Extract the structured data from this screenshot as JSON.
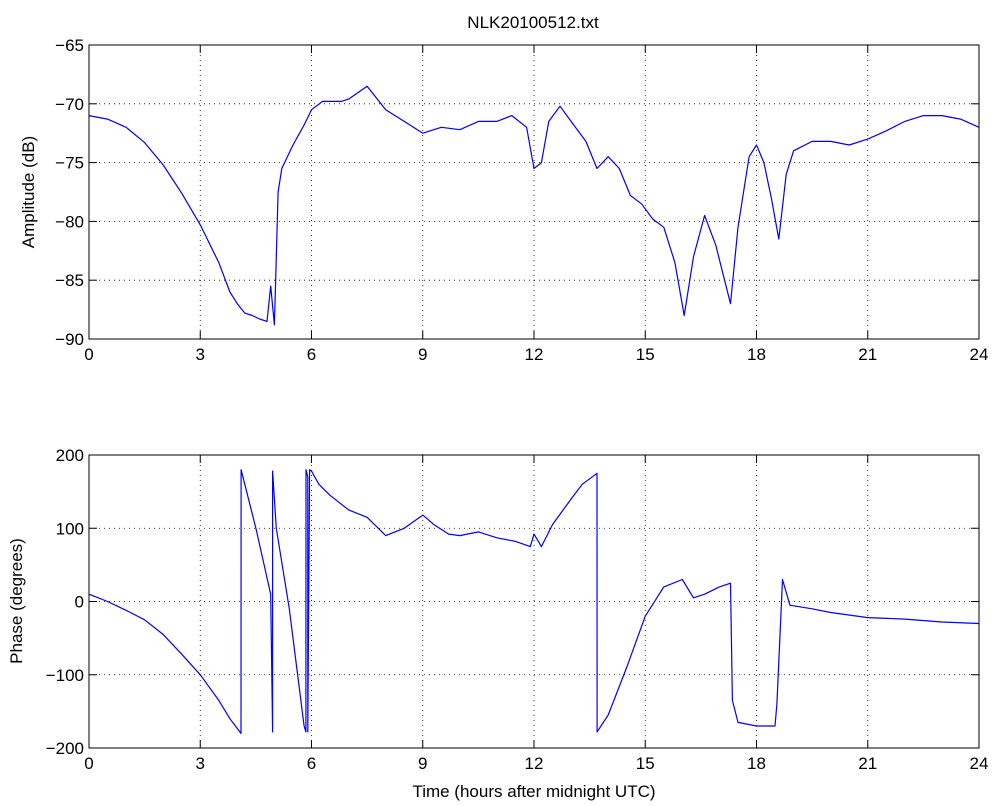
{
  "figure": {
    "title": "NLK20100512.txt"
  },
  "chart_data": [
    {
      "type": "line",
      "title": "NLK20100512.txt",
      "xlabel": "",
      "ylabel": "Amplitude (dB)",
      "xlim": [
        0,
        24
      ],
      "ylim": [
        -90,
        -65
      ],
      "xticks": [
        0,
        3,
        6,
        9,
        12,
        15,
        18,
        21,
        24
      ],
      "yticks": [
        -90,
        -85,
        -80,
        -75,
        -70,
        -65
      ],
      "grid": true,
      "line_color": "#0000ff",
      "x": [
        0,
        0.5,
        1.0,
        1.5,
        2.0,
        2.5,
        3.0,
        3.5,
        3.8,
        4.0,
        4.2,
        4.4,
        4.6,
        4.8,
        4.9,
        5.0,
        5.05,
        5.1,
        5.2,
        5.5,
        5.8,
        6.0,
        6.3,
        6.8,
        7.0,
        7.5,
        8.0,
        8.5,
        9.0,
        9.5,
        10.0,
        10.5,
        11.0,
        11.4,
        11.8,
        12.0,
        12.2,
        12.4,
        12.7,
        13.0,
        13.4,
        13.7,
        14.0,
        14.3,
        14.6,
        14.9,
        15.2,
        15.5,
        15.8,
        16.05,
        16.3,
        16.6,
        16.9,
        17.1,
        17.3,
        17.5,
        17.8,
        18.0,
        18.2,
        18.4,
        18.6,
        18.8,
        19.0,
        19.5,
        20.0,
        20.5,
        21.0,
        21.5,
        22.0,
        22.5,
        23.0,
        23.5,
        24.0
      ],
      "y": [
        -71,
        -71.3,
        -72,
        -73.3,
        -75.2,
        -77.6,
        -80.3,
        -83.5,
        -86.0,
        -87.0,
        -87.8,
        -88.0,
        -88.3,
        -88.5,
        -85.5,
        -88.8,
        -83,
        -77.5,
        -75.5,
        -73.5,
        -71.8,
        -70.5,
        -69.8,
        -69.8,
        -69.6,
        -68.5,
        -70.5,
        -71.5,
        -72.5,
        -72.0,
        -72.2,
        -71.5,
        -71.5,
        -71.0,
        -72.0,
        -75.5,
        -75.0,
        -71.5,
        -70.2,
        -71.5,
        -73.2,
        -75.5,
        -74.5,
        -75.5,
        -77.8,
        -78.5,
        -79.8,
        -80.5,
        -83.5,
        -88.0,
        -83.0,
        -79.5,
        -82.0,
        -84.5,
        -87.0,
        -80.5,
        -74.5,
        -73.5,
        -75.0,
        -78.0,
        -81.5,
        -76.0,
        -74.0,
        -73.2,
        -73.2,
        -73.5,
        -73.0,
        -72.3,
        -71.5,
        -71.0,
        -71.0,
        -71.3,
        -72.0
      ]
    },
    {
      "type": "line",
      "title": "",
      "xlabel": "Time (hours after midnight UTC)",
      "ylabel": "Phase (degrees)",
      "xlim": [
        0,
        24
      ],
      "ylim": [
        -200,
        200
      ],
      "xticks": [
        0,
        3,
        6,
        9,
        12,
        15,
        18,
        21,
        24
      ],
      "yticks": [
        -200,
        -100,
        0,
        100,
        200
      ],
      "grid": true,
      "line_color": "#0000ff",
      "x": [
        0,
        0.5,
        1.0,
        1.5,
        2.0,
        2.5,
        3.0,
        3.5,
        3.8,
        4.1,
        4.101,
        4.5,
        4.9,
        4.95,
        4.951,
        5.05,
        5.4,
        5.8,
        5.85,
        5.851,
        5.9,
        5.901,
        5.95,
        6.0,
        6.2,
        6.5,
        7.0,
        7.5,
        8.0,
        8.5,
        9.0,
        9.3,
        9.7,
        10.0,
        10.5,
        11.0,
        11.5,
        11.9,
        12.0,
        12.2,
        12.5,
        13.0,
        13.3,
        13.7,
        13.701,
        14.0,
        14.5,
        15.0,
        15.5,
        16.0,
        16.3,
        16.6,
        17.0,
        17.3,
        17.35,
        17.5,
        18.0,
        18.5,
        18.55,
        18.7,
        18.9,
        19.5,
        20.0,
        21.0,
        22.0,
        23.0,
        24.0
      ],
      "y": [
        10,
        0,
        -12,
        -25,
        -45,
        -72,
        -100,
        -135,
        -160,
        -180,
        180,
        100,
        10,
        -178,
        178,
        100,
        -10,
        -170,
        -178,
        180,
        170,
        -178,
        180,
        178,
        160,
        145,
        125,
        115,
        90,
        100,
        118,
        105,
        92,
        90,
        95,
        87,
        82,
        75,
        92,
        75,
        105,
        140,
        160,
        175,
        -178,
        -155,
        -90,
        -20,
        20,
        30,
        5,
        10,
        20,
        25,
        -135,
        -165,
        -170,
        -170,
        -140,
        30,
        -5,
        -10,
        -15,
        -22,
        -24,
        -28,
        -30
      ]
    }
  ]
}
